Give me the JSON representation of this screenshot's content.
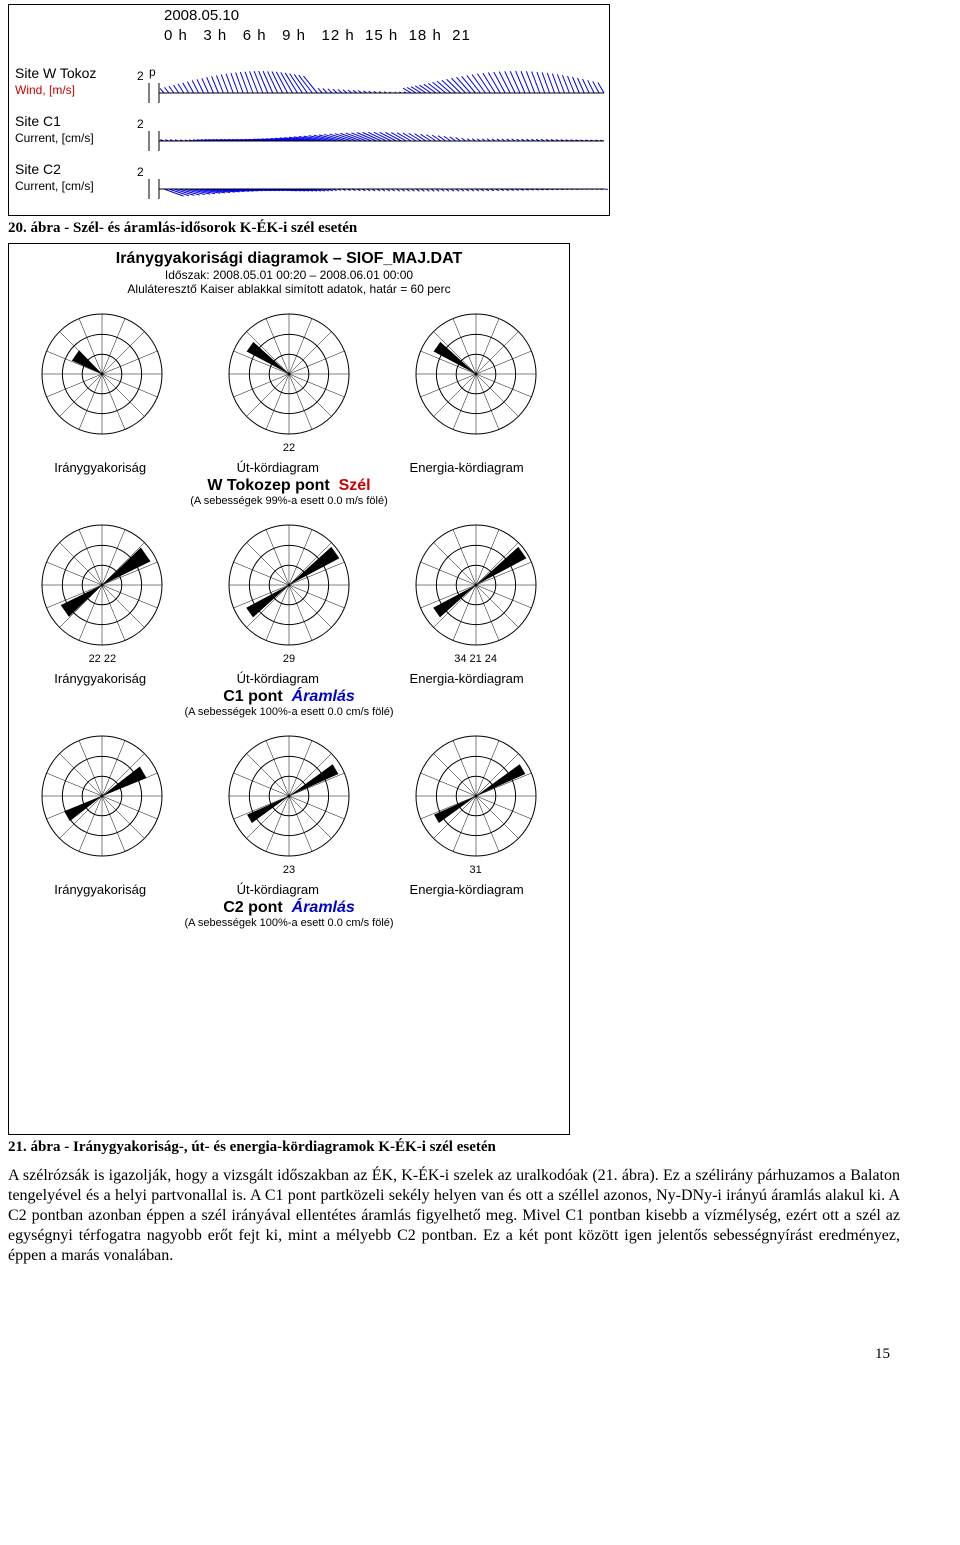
{
  "timeseries": {
    "date": "2008.05.10",
    "hours": [
      "0 h",
      "3 h",
      "6 h",
      "9 h",
      "12 h",
      "15 h",
      "18 h",
      "21"
    ],
    "rows": [
      {
        "label": "Site W Tokoz",
        "sublabel": "Wind,  [m/s]",
        "sub_color": "#cc0000",
        "scale_tick": "2",
        "scale_suffix": "p"
      },
      {
        "label": "Site C1",
        "sublabel": "Current,  [cm/s]",
        "sub_color": "#000000",
        "scale_tick": "2",
        "scale_suffix": ""
      },
      {
        "label": "Site C2",
        "sublabel": "Current,  [cm/s]",
        "sub_color": "#000000",
        "scale_tick": "2",
        "scale_suffix": ""
      }
    ],
    "stick_color": "#0000ee",
    "base_color": "#000000"
  },
  "caption1": "20. ábra - Szél- és áramlás-idősorok K-ÉK-i szél esetén",
  "rosediagram": {
    "title": "Iránygyakorisági diagramok – SIOF_MAJ.DAT",
    "period": "Időszak: 2008.05.01 00:20 – 2008.06.01 00:00",
    "filter": "Aluláteresztő Kaiser ablakkal simított adatok, határ = 60 perc",
    "col_labels": [
      "Iránygyakoriság",
      "Út-kördiagram",
      "Energia-kördiagram"
    ],
    "groups": [
      {
        "title_main": "W Tokozep pont",
        "title_kind": "Szél",
        "kind_class": "rd-red",
        "note": "(A sebességek 99%-a esett 0.0 m/s fölé)",
        "roses": [
          {
            "angle": -55,
            "spread": 22,
            "len": 0.55,
            "nums": []
          },
          {
            "angle": -55,
            "spread": 14,
            "len": 0.8,
            "nums": [
              "22"
            ]
          },
          {
            "angle": -55,
            "spread": 14,
            "len": 0.8,
            "nums": []
          }
        ]
      },
      {
        "title_main": "C1 pont",
        "title_kind": "Áramlás",
        "kind_class": "rd-blue",
        "note": "(A sebességek 100%-a esett 0.0 cm/s fölé)",
        "roses": [
          {
            "angle": 55,
            "spread": 18,
            "len": 0.9,
            "two_sided": true,
            "nums": [
              "22",
              "22"
            ]
          },
          {
            "angle": 55,
            "spread": 14,
            "len": 0.95,
            "two_sided": true,
            "nums": [
              "29"
            ]
          },
          {
            "angle": 55,
            "spread": 14,
            "len": 0.95,
            "two_sided": true,
            "nums": [
              "34",
              "21",
              "24"
            ]
          }
        ]
      },
      {
        "title_main": "C2 pont",
        "title_kind": "Áramlás",
        "kind_class": "rd-blue",
        "note": "(A sebességek 100%-a esett 0.0 cm/s fölé)",
        "roses": [
          {
            "angle": 60,
            "spread": 16,
            "len": 0.8,
            "two_sided": true,
            "nums": []
          },
          {
            "angle": 60,
            "spread": 12,
            "len": 0.9,
            "two_sided": true,
            "nums": [
              "23"
            ]
          },
          {
            "angle": 60,
            "spread": 12,
            "len": 0.9,
            "two_sided": true,
            "nums": [
              "31"
            ]
          }
        ]
      }
    ],
    "circle_r": 60,
    "sector_count": 16,
    "grid_color": "#000000",
    "fill_color": "#000000"
  },
  "caption2": "21. ábra - Iránygyakoriság-, út- és energia-kördiagramok K-ÉK-i szél esetén",
  "paragraph": "A szélrózsák is igazolják, hogy a vizsgált időszakban az ÉK, K-ÉK-i szelek az uralkodóak (21. ábra). Ez a szélirány párhuzamos a Balaton tengelyével és a helyi partvonallal is. A C1 pont partközeli sekély helyen van és ott a széllel azonos, Ny-DNy-i irányú áramlás alakul ki. A C2 pontban azonban éppen a szél irányával ellentétes áramlás figyelhető meg. Mivel C1 pontban kisebb a vízmélység, ezért ott a szél az egységnyi térfogatra nagyobb erőt fejt ki, mint a mélyebb C2 pontban. Ez a két pont között igen jelentős sebességnyírást eredményez, éppen a marás vonalában.",
  "page_number": "15"
}
